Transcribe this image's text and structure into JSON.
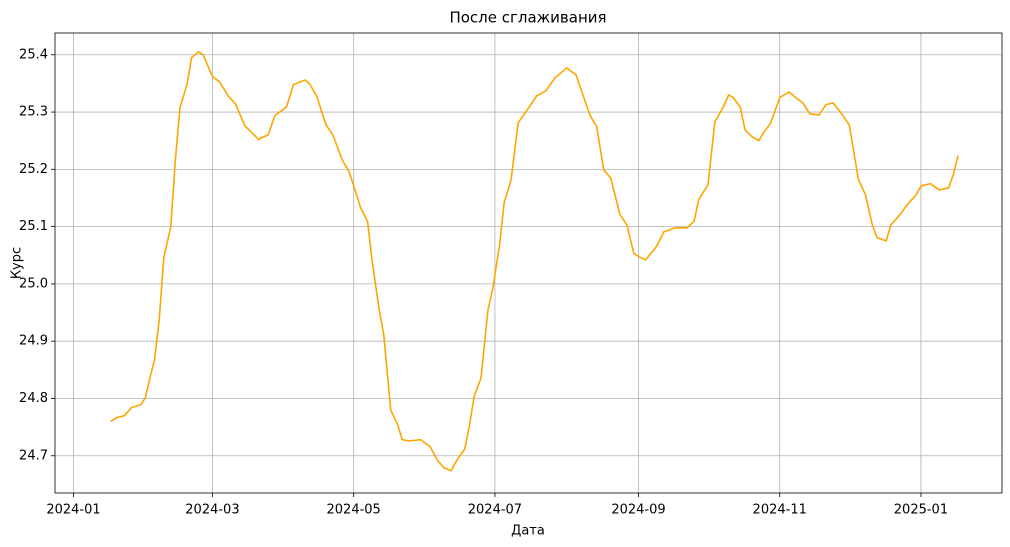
{
  "chart_data": {
    "type": "line",
    "title": "После сглаживания",
    "x_label": "Дата",
    "y_label": "Курс",
    "x": [
      16,
      19,
      22,
      25,
      29,
      31,
      33,
      35,
      37,
      39,
      42,
      44,
      46,
      49,
      51,
      54,
      56,
      58,
      60,
      63,
      67,
      70,
      74,
      77,
      80,
      81,
      84,
      87,
      92,
      95,
      100,
      102,
      105,
      109,
      112,
      116,
      119,
      122,
      124,
      127,
      129,
      132,
      134,
      136,
      137,
      140,
      142,
      145,
      150,
      154,
      157,
      160,
      163,
      166,
      169,
      171,
      173,
      176,
      179,
      181,
      184,
      186,
      189,
      192,
      196,
      200,
      204,
      208,
      211,
      213,
      217,
      220,
      223,
      226,
      229,
      232,
      236,
      239,
      242,
      245,
      247,
      250,
      252,
      255,
      260,
      265,
      268,
      270,
      274,
      277,
      280,
      283,
      285,
      288,
      290,
      293,
      296,
      298,
      301,
      305,
      309,
      312,
      315,
      318,
      322,
      325,
      328,
      331,
      335,
      339,
      342,
      345,
      347,
      351,
      353,
      357,
      360,
      364,
      366,
      370,
      374,
      378,
      380,
      382
    ],
    "series": [
      {
        "name": "Курс",
        "color": "#ffa500",
        "values": [
          24.76,
          24.767,
          24.77,
          24.784,
          24.789,
          24.801,
          24.836,
          24.868,
          24.937,
          25.046,
          25.1,
          25.217,
          25.308,
          25.348,
          25.395,
          25.405,
          25.4,
          25.381,
          25.362,
          25.353,
          25.327,
          25.314,
          25.276,
          25.264,
          25.252,
          25.255,
          25.26,
          25.294,
          25.309,
          25.348,
          25.356,
          25.349,
          25.328,
          25.278,
          25.26,
          25.217,
          25.196,
          25.159,
          25.133,
          25.109,
          25.039,
          24.955,
          24.911,
          24.824,
          24.78,
          24.754,
          24.728,
          24.726,
          24.728,
          24.716,
          24.693,
          24.679,
          24.674,
          24.695,
          24.712,
          24.753,
          24.803,
          24.836,
          24.955,
          24.99,
          25.068,
          25.142,
          25.182,
          25.281,
          25.304,
          25.328,
          25.337,
          25.36,
          25.37,
          25.377,
          25.365,
          25.33,
          25.295,
          25.274,
          25.199,
          25.185,
          25.121,
          25.103,
          25.053,
          25.046,
          25.042,
          25.056,
          25.067,
          25.091,
          25.098,
          25.098,
          25.109,
          25.147,
          25.173,
          25.283,
          25.304,
          25.33,
          25.325,
          25.308,
          25.269,
          25.257,
          25.25,
          25.264,
          25.28,
          25.325,
          25.335,
          25.325,
          25.316,
          25.297,
          25.295,
          25.313,
          25.316,
          25.301,
          25.278,
          25.182,
          25.156,
          25.103,
          25.081,
          25.075,
          25.103,
          25.121,
          25.138,
          25.156,
          25.171,
          25.175,
          25.164,
          25.168,
          25.191,
          25.224
        ]
      }
    ],
    "xlim": [
      -8,
      401
    ],
    "xticks": [
      {
        "value": 0,
        "label": "2024-01"
      },
      {
        "value": 60,
        "label": "2024-03"
      },
      {
        "value": 121,
        "label": "2024-05"
      },
      {
        "value": 182,
        "label": "2024-07"
      },
      {
        "value": 244,
        "label": "2024-09"
      },
      {
        "value": 305,
        "label": "2024-11"
      },
      {
        "value": 366,
        "label": "2025-01"
      }
    ],
    "ylim": [
      24.635,
      25.438
    ],
    "yticks": [
      24.7,
      24.8,
      24.9,
      {
        "value": 25,
        "label": "25.0"
      },
      25.1,
      25.2,
      25.3,
      25.4
    ],
    "grid": true
  }
}
